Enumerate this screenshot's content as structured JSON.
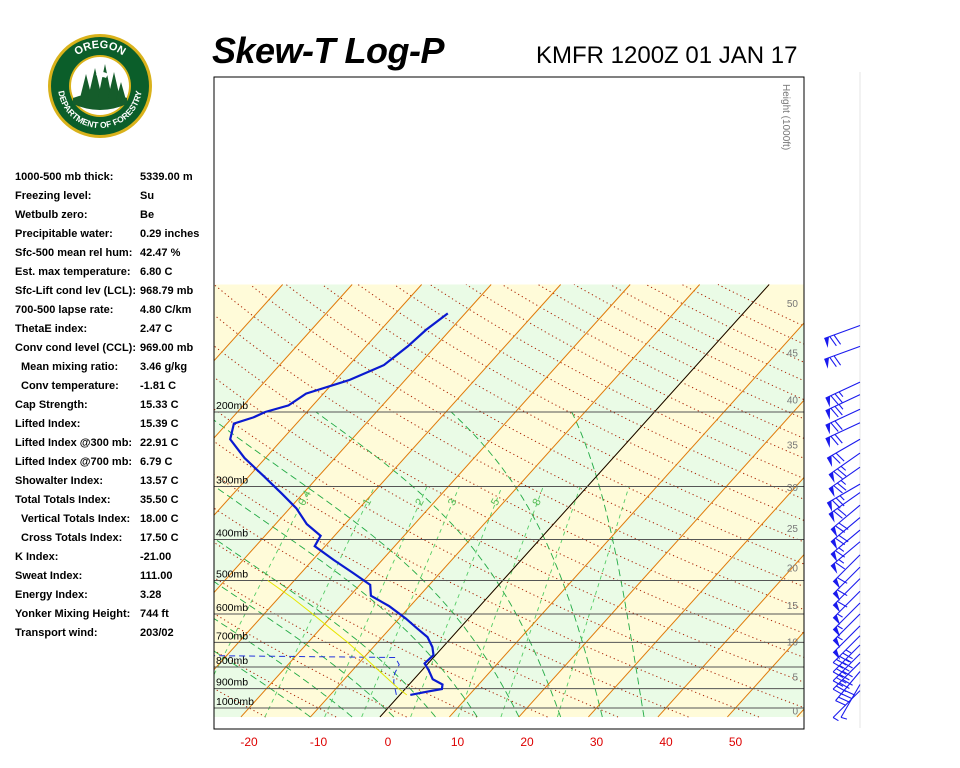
{
  "header": {
    "title": "Skew-T Log-P",
    "subtitle": "KMFR 1200Z 01 JAN 17"
  },
  "logo": {
    "top_text": "OREGON",
    "bottom_text": "DEPARTMENT OF FORESTRY",
    "colors": {
      "ring": "#0b5e2a",
      "rim": "#d9b21b",
      "tree": "#155d2b",
      "sky": "#ffffff"
    }
  },
  "stats": [
    {
      "label": "1000-500 mb thick:",
      "value": "5339.00 m"
    },
    {
      "label": "Freezing level:",
      "value": "Su"
    },
    {
      "label": "Wetbulb zero:",
      "value": "Be"
    },
    {
      "label": "Precipitable water:",
      "value": "0.29 inches"
    },
    {
      "label": "Sfc-500 mean rel hum:",
      "value": "42.47 %"
    },
    {
      "label": "Est. max temperature:",
      "value": "6.80 C"
    },
    {
      "label": "Sfc-Lift cond lev (LCL):",
      "value": "968.79 mb"
    },
    {
      "label": "700-500 lapse rate:",
      "value": "4.80 C/km"
    },
    {
      "label": "ThetaE index:",
      "value": "2.47 C"
    },
    {
      "label": "Conv cond level (CCL):",
      "value": "969.00 mb"
    },
    {
      "label": "Mean mixing ratio:",
      "value": "3.46 g/kg",
      "indent": true
    },
    {
      "label": "Conv temperature:",
      "value": "-1.81 C",
      "indent": true
    },
    {
      "label": "Cap Strength:",
      "value": "15.33 C"
    },
    {
      "label": "Lifted Index:",
      "value": "15.39 C"
    },
    {
      "label": "Lifted Index @300 mb:",
      "value": "22.91 C"
    },
    {
      "label": "Lifted Index @700 mb:",
      "value": "6.79 C"
    },
    {
      "label": "Showalter Index:",
      "value": "13.57 C"
    },
    {
      "label": "Total Totals Index:",
      "value": "35.50 C"
    },
    {
      "label": "Vertical Totals Index:",
      "value": "18.00 C",
      "indent": true
    },
    {
      "label": "Cross Totals Index:",
      "value": "17.50 C",
      "indent": true
    },
    {
      "label": "K Index:",
      "value": "-21.00"
    },
    {
      "label": "Sweat Index:",
      "value": "111.00"
    },
    {
      "label": "Energy Index:",
      "value": "3.28"
    },
    {
      "label": "Yonker Mixing Height:",
      "value": "744 ft"
    },
    {
      "label": "Transport wind:",
      "value": "203/02"
    }
  ],
  "colors": {
    "temperature": "#0a1ad0",
    "dewpoint": "#2233dd",
    "parcel": "#e6e600",
    "isotherm": "#e07a0a",
    "dry_adiabat": "#aa2200",
    "moist_adiabat": "#22aa44",
    "mixing_ratio": "#55cc66",
    "isobar": "#555555",
    "band_yellow": "#fffbd9",
    "band_green": "#eafbe6",
    "wind_barb": "#1a1aee",
    "x_tick": "#dd0000",
    "height_label": "#777777",
    "mixing_label": "#55bb55"
  },
  "chart_data": {
    "type": "line",
    "diagram": "skew-t log-p",
    "xlabel": "",
    "ylabel": "",
    "x_ticks": [
      -20,
      -10,
      0,
      10,
      20,
      30,
      40,
      50
    ],
    "pressure_levels": [
      {
        "p": 200,
        "label": "200mb"
      },
      {
        "p": 300,
        "label": "300mb"
      },
      {
        "p": 400,
        "label": "400mb"
      },
      {
        "p": 500,
        "label": "500mb"
      },
      {
        "p": 600,
        "label": "600mb"
      },
      {
        "p": 700,
        "label": "700mb"
      },
      {
        "p": 800,
        "label": "800mb"
      },
      {
        "p": 900,
        "label": "900mb"
      },
      {
        "p": 1000,
        "label": "1000mb"
      }
    ],
    "height_axis": {
      "title": "Height (1000ft)",
      "ticks": [
        0,
        5,
        10,
        15,
        20,
        25,
        30,
        35,
        40,
        45,
        50
      ]
    },
    "mixing_ratio_labels": [
      "0.4",
      "1",
      "2",
      "3",
      "5",
      "8"
    ],
    "series": [
      {
        "role": "temperature",
        "points": [
          [
            931,
            1.5
          ],
          [
            915,
            3.5
          ],
          [
            902,
            5.3
          ],
          [
            880,
            4.8
          ],
          [
            855,
            2.7
          ],
          [
            815,
            1.0
          ],
          [
            785,
            -0.5
          ],
          [
            750,
            -0.3
          ],
          [
            718,
            -1.5
          ],
          [
            680,
            -3.5
          ],
          [
            650,
            -6.0
          ],
          [
            615,
            -9.0
          ],
          [
            575,
            -13.0
          ],
          [
            543,
            -17.0
          ],
          [
            512,
            -18.5
          ],
          [
            480,
            -22.5
          ],
          [
            447,
            -27.0
          ],
          [
            415,
            -31.5
          ],
          [
            392,
            -32.0
          ],
          [
            368,
            -35.5
          ],
          [
            338,
            -39.0
          ],
          [
            312,
            -43.0
          ],
          [
            283,
            -48.0
          ],
          [
            257,
            -53.0
          ],
          [
            232,
            -57.5
          ],
          [
            213,
            -59.0
          ],
          [
            206,
            -57.0
          ],
          [
            200,
            -56.0
          ],
          [
            193,
            -53.5
          ],
          [
            181,
            -52.5
          ],
          [
            168,
            -48.0
          ],
          [
            155,
            -45.0
          ],
          [
            140,
            -44.0
          ],
          [
            128,
            -43.5
          ],
          [
            117,
            -42.5
          ]
        ]
      },
      {
        "role": "dewpoint",
        "points": [
          [
            931,
            -0.5
          ],
          [
            900,
            -1.5
          ],
          [
            870,
            -2.5
          ],
          [
            830,
            -3.5
          ],
          [
            790,
            -4.0
          ],
          [
            760,
            -5.5
          ],
          [
            752,
            -33.0
          ],
          [
            735,
            -40.0
          ],
          [
            710,
            -43.0
          ],
          [
            670,
            -45.0
          ],
          [
            630,
            -48.0
          ],
          [
            600,
            -47.5
          ],
          [
            575,
            -51.0
          ],
          [
            545,
            -54.0
          ],
          [
            510,
            -56.0
          ],
          [
            460,
            -60.0
          ],
          [
            430,
            -63.0
          ],
          [
            410,
            -63.5
          ],
          [
            395,
            -67.0
          ],
          [
            370,
            -68.0
          ],
          [
            330,
            -70.0
          ],
          [
            300,
            -73.0
          ],
          [
            270,
            -74.0
          ],
          [
            240,
            -75.0
          ],
          [
            215,
            -73.0
          ],
          [
            200,
            -73.5
          ],
          [
            180,
            -76.0
          ],
          [
            160,
            -80.0
          ],
          [
            140,
            -78.0
          ],
          [
            128,
            -76.0
          ]
        ]
      },
      {
        "role": "parcel",
        "points": [
          [
            931,
            1.0
          ],
          [
            900,
            -1.0
          ],
          [
            850,
            -4.0
          ],
          [
            800,
            -7.2
          ],
          [
            750,
            -10.6
          ],
          [
            700,
            -14.3
          ],
          [
            650,
            -18.5
          ],
          [
            600,
            -23.0
          ],
          [
            550,
            -28.0
          ],
          [
            500,
            -33.8
          ]
        ]
      }
    ],
    "winds": [
      {
        "p": 910,
        "dir": 225,
        "speed": 5
      },
      {
        "p": 880,
        "dir": 210,
        "speed": 5
      },
      {
        "p": 820,
        "dir": 220,
        "speed": 40
      },
      {
        "p": 780,
        "dir": 225,
        "speed": 40
      },
      {
        "p": 745,
        "dir": 225,
        "speed": 40
      },
      {
        "p": 710,
        "dir": 225,
        "speed": 45
      },
      {
        "p": 675,
        "dir": 225,
        "speed": 45
      },
      {
        "p": 640,
        "dir": 225,
        "speed": 50
      },
      {
        "p": 600,
        "dir": 225,
        "speed": 55
      },
      {
        "p": 565,
        "dir": 225,
        "speed": 55
      },
      {
        "p": 530,
        "dir": 225,
        "speed": 55
      },
      {
        "p": 495,
        "dir": 225,
        "speed": 60
      },
      {
        "p": 465,
        "dir": 225,
        "speed": 60
      },
      {
        "p": 435,
        "dir": 225,
        "speed": 60
      },
      {
        "p": 405,
        "dir": 230,
        "speed": 65
      },
      {
        "p": 380,
        "dir": 230,
        "speed": 65
      },
      {
        "p": 355,
        "dir": 230,
        "speed": 70
      },
      {
        "p": 332,
        "dir": 230,
        "speed": 70
      },
      {
        "p": 310,
        "dir": 235,
        "speed": 70
      },
      {
        "p": 296,
        "dir": 240,
        "speed": 75
      },
      {
        "p": 270,
        "dir": 235,
        "speed": 75
      },
      {
        "p": 250,
        "dir": 235,
        "speed": 75
      },
      {
        "p": 232,
        "dir": 240,
        "speed": 70
      },
      {
        "p": 212,
        "dir": 245,
        "speed": 70
      },
      {
        "p": 197,
        "dir": 245,
        "speed": 70
      },
      {
        "p": 182,
        "dir": 245,
        "speed": 75
      },
      {
        "p": 170,
        "dir": 245,
        "speed": 75
      },
      {
        "p": 140,
        "dir": 250,
        "speed": 70
      },
      {
        "p": 125,
        "dir": 250,
        "speed": 70
      }
    ]
  }
}
